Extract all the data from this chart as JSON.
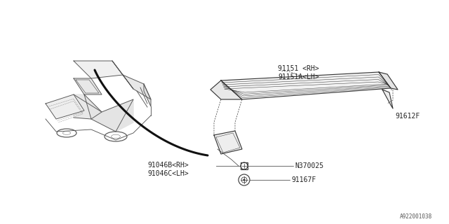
{
  "bg_color": "#ffffff",
  "line_color": "#333333",
  "diagram_id": "A922001038",
  "labels": {
    "part1": "91151 <RH>",
    "part1a": "91151A<LH>",
    "part2": "91046B<RH>",
    "part2a": "91046C<LH>",
    "part3": "N370025",
    "part4": "91167F",
    "part5": "91612F"
  },
  "font_size": 7
}
